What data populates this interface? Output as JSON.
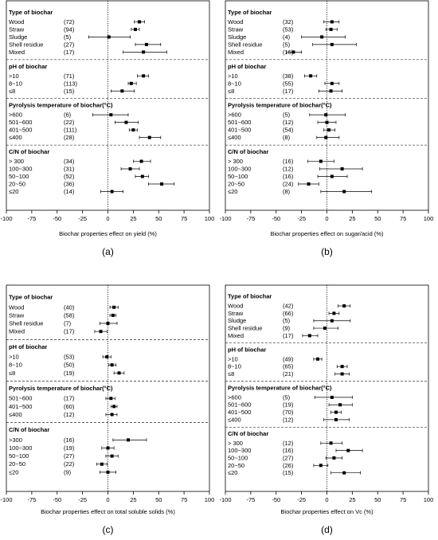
{
  "chart_data": [
    {
      "panel_label": "(a)",
      "type": "scatter",
      "xlabel": "Biochar properties effect on yield (%)",
      "xlim": [
        -100,
        100
      ],
      "xticks": [
        -100,
        -75,
        -50,
        -25,
        0,
        25,
        50,
        75,
        100
      ],
      "reference_line": 0,
      "groups": [
        {
          "title": "Type of biochar",
          "rows": [
            {
              "label": "Wood",
              "n": "(72)",
              "mean": 31,
              "ci": [
                26,
                36
              ]
            },
            {
              "label": "Straw",
              "n": "(94)",
              "mean": 27,
              "ci": [
                23,
                31
              ]
            },
            {
              "label": "Sludge",
              "n": "(5)",
              "mean": 1,
              "ci": [
                -19,
                22
              ]
            },
            {
              "label": "Shell residue",
              "n": "(27)",
              "mean": 38,
              "ci": [
                27,
                52
              ]
            },
            {
              "label": "Mixed",
              "n": "(17)",
              "mean": 35,
              "ci": [
                15,
                58
              ]
            }
          ]
        },
        {
          "title": "pH of biochar",
          "rows": [
            {
              "label": ">10",
              "n": "(71)",
              "mean": 35,
              "ci": [
                29,
                40
              ]
            },
            {
              "label": "8~10",
              "n": "(113)",
              "mean": 23,
              "ci": [
                20,
                28
              ]
            },
            {
              "label": "≤8",
              "n": "(15)",
              "mean": 14,
              "ci": [
                3,
                26
              ]
            }
          ]
        },
        {
          "title": "Pyrolysis temperature of biochar(°C)",
          "rows": [
            {
              "label": ">600",
              "n": "(6)",
              "mean": 3,
              "ci": [
                -15,
                20
              ]
            },
            {
              "label": "501~600",
              "n": "(22)",
              "mean": 18,
              "ci": [
                7,
                30
              ]
            },
            {
              "label": "401~500",
              "n": "(111)",
              "mean": 25,
              "ci": [
                21,
                29
              ]
            },
            {
              "label": "≤400",
              "n": "(28)",
              "mean": 41,
              "ci": [
                31,
                52
              ]
            }
          ]
        },
        {
          "title": "C/N of biochar",
          "rows": [
            {
              "label": "> 300",
              "n": "(34)",
              "mean": 33,
              "ci": [
                25,
                42
              ]
            },
            {
              "label": "100~300",
              "n": "(31)",
              "mean": 22,
              "ci": [
                13,
                31
              ]
            },
            {
              "label": "50~100",
              "n": "(52)",
              "mean": 34,
              "ci": [
                27,
                40
              ]
            },
            {
              "label": "20~50",
              "n": "(36)",
              "mean": 53,
              "ci": [
                40,
                65
              ]
            },
            {
              "label": "≤20",
              "n": "(14)",
              "mean": 4,
              "ci": [
                -7,
                15
              ]
            }
          ]
        }
      ]
    },
    {
      "panel_label": "(b)",
      "type": "scatter",
      "xlabel": "Biochar properties effect on sugar/acid (%)",
      "xlim": [
        -100,
        100
      ],
      "xticks": [
        -100,
        -75,
        -50,
        -25,
        0,
        25,
        50,
        75,
        100
      ],
      "reference_line": 0,
      "groups": [
        {
          "title": "Type of biochar",
          "rows": [
            {
              "label": "Wood",
              "n": "(32)",
              "mean": 5,
              "ci": [
                -3,
                12
              ]
            },
            {
              "label": "Straw",
              "n": "(53)",
              "mean": 4,
              "ci": [
                -1,
                10
              ]
            },
            {
              "label": "Sludge",
              "n": "(4)",
              "mean": -5,
              "ci": [
                -25,
                18
              ]
            },
            {
              "label": "Shell residue",
              "n": "(5)",
              "mean": 5,
              "ci": [
                -14,
                29
              ]
            },
            {
              "label": "Mixed",
              "n": "(16)",
              "mean": -33,
              "ci": [
                -40,
                -25
              ]
            }
          ]
        },
        {
          "title": "pH of biochar",
          "rows": [
            {
              "label": ">10",
              "n": "(38)",
              "mean": -16,
              "ci": [
                -22,
                -10
              ]
            },
            {
              "label": "8~10",
              "n": "(55)",
              "mean": 5,
              "ci": [
                -2,
                12
              ]
            },
            {
              "label": "≤8",
              "n": "(17)",
              "mean": 4,
              "ci": [
                -8,
                15
              ]
            }
          ]
        },
        {
          "title": "Pyrolysis temperature of biochar(°C)",
          "rows": [
            {
              "label": ">600",
              "n": "(5)",
              "mean": -1,
              "ci": [
                -17,
                18
              ]
            },
            {
              "label": "501~600",
              "n": "(12)",
              "mean": 0,
              "ci": [
                -9,
                9
              ]
            },
            {
              "label": "401~500",
              "n": "(54)",
              "mean": 2,
              "ci": [
                -3,
                8
              ]
            },
            {
              "label": "≤400",
              "n": "(8)",
              "mean": -1,
              "ci": [
                -10,
                12
              ]
            }
          ]
        },
        {
          "title": "C/N of biochar",
          "rows": [
            {
              "label": "> 300",
              "n": "(16)",
              "mean": -6,
              "ci": [
                -19,
                7
              ]
            },
            {
              "label": "100~300",
              "n": "(12)",
              "mean": 15,
              "ci": [
                -7,
                35
              ]
            },
            {
              "label": "50~100",
              "n": "(16)",
              "mean": 5,
              "ci": [
                -9,
                20
              ]
            },
            {
              "label": "20~50",
              "n": "(24)",
              "mean": -18,
              "ci": [
                -28,
                -8
              ]
            },
            {
              "label": "≤20",
              "n": "(8)",
              "mean": 17,
              "ci": [
                -6,
                44
              ]
            }
          ]
        }
      ]
    },
    {
      "panel_label": "(c)",
      "type": "scatter",
      "xlabel": "Biochar properties effect on total soluble solids (%)",
      "xlim": [
        -100,
        100
      ],
      "xticks": [
        -100,
        -75,
        -50,
        -25,
        0,
        25,
        50,
        75,
        100
      ],
      "reference_line": 0,
      "groups": [
        {
          "title": "Type of biochar",
          "rows": [
            {
              "label": "Wood",
              "n": "(40)",
              "mean": 6,
              "ci": [
                2,
                10
              ]
            },
            {
              "label": "Straw",
              "n": "(58)",
              "mean": 5,
              "ci": [
                2,
                8
              ]
            },
            {
              "label": "Shell residue",
              "n": "(7)",
              "mean": 0,
              "ci": [
                -8,
                9
              ]
            },
            {
              "label": "Mixed",
              "n": "(17)",
              "mean": -7,
              "ci": [
                -13,
                -1
              ]
            }
          ]
        },
        {
          "title": "pH of biochar",
          "rows": [
            {
              "label": ">10",
              "n": "(53)",
              "mean": -1,
              "ci": [
                -5,
                3
              ]
            },
            {
              "label": "8~10",
              "n": "(50)",
              "mean": 4,
              "ci": [
                1,
                8
              ]
            },
            {
              "label": "≤8",
              "n": "(19)",
              "mean": 11,
              "ci": [
                6,
                16
              ]
            }
          ]
        },
        {
          "title": "Pyrolysis temperature of biochar(°C)",
          "rows": [
            {
              "label": "501~600",
              "n": "(17)",
              "mean": 3,
              "ci": [
                -2,
                7
              ]
            },
            {
              "label": "401~500",
              "n": "(60)",
              "mean": 6,
              "ci": [
                3,
                9
              ]
            },
            {
              "label": "≤400",
              "n": "(12)",
              "mean": 4,
              "ci": [
                -2,
                9
              ]
            }
          ]
        },
        {
          "title": "C/N of biochar",
          "rows": [
            {
              "label": ">300",
              "n": "(16)",
              "mean": 20,
              "ci": [
                5,
                38
              ]
            },
            {
              "label": "100~300",
              "n": "(19)",
              "mean": 0,
              "ci": [
                -6,
                6
              ]
            },
            {
              "label": "50~100",
              "n": "(27)",
              "mean": 4,
              "ci": [
                -2,
                10
              ]
            },
            {
              "label": "20~50",
              "n": "(22)",
              "mean": -6,
              "ci": [
                -11,
                -1
              ]
            },
            {
              "label": "≤20",
              "n": "(9)",
              "mean": 0,
              "ci": [
                -8,
                8
              ]
            }
          ]
        }
      ]
    },
    {
      "panel_label": "(d)",
      "type": "scatter",
      "xlabel": "Biochar properties effect on Vc (%)",
      "xlim": [
        -100,
        100
      ],
      "xticks": [
        -100,
        -75,
        -50,
        -25,
        0,
        25,
        50,
        75,
        100
      ],
      "reference_line": 0,
      "groups": [
        {
          "title": "Type of biochar",
          "rows": [
            {
              "label": "Wood",
              "n": "(42)",
              "mean": 17,
              "ci": [
                11,
                23
              ]
            },
            {
              "label": "Straw",
              "n": "(66)",
              "mean": 7,
              "ci": [
                2,
                12
              ]
            },
            {
              "label": "Sludge",
              "n": "(5)",
              "mean": 5,
              "ci": [
                -13,
                23
              ]
            },
            {
              "label": "Shell residue",
              "n": "(9)",
              "mean": -2,
              "ci": [
                -13,
                11
              ]
            },
            {
              "label": "Mixed",
              "n": "(17)",
              "mean": -17,
              "ci": [
                -24,
                -9
              ]
            }
          ]
        },
        {
          "title": "pH of biochar",
          "rows": [
            {
              "label": ">10",
              "n": "(49)",
              "mean": -9,
              "ci": [
                -13,
                -5
              ]
            },
            {
              "label": "8~10",
              "n": "(65)",
              "mean": 15,
              "ci": [
                10,
                20
              ]
            },
            {
              "label": "≤8",
              "n": "(21)",
              "mean": 15,
              "ci": [
                8,
                22
              ]
            }
          ]
        },
        {
          "title": "Pyrolysis temperature of biochar(°C)",
          "rows": [
            {
              "label": ">600",
              "n": "(5)",
              "mean": 5,
              "ci": [
                -12,
                25
              ]
            },
            {
              "label": "501~600",
              "n": "(19)",
              "mean": 13,
              "ci": [
                2,
                25
              ]
            },
            {
              "label": "401~500",
              "n": "(70)",
              "mean": 9,
              "ci": [
                4,
                14
              ]
            },
            {
              "label": "≤400",
              "n": "(12)",
              "mean": 9,
              "ci": [
                -3,
                22
              ]
            }
          ]
        },
        {
          "title": "C/N of biochar",
          "rows": [
            {
              "label": "> 300",
              "n": "(12)",
              "mean": 4,
              "ci": [
                -6,
                15
              ]
            },
            {
              "label": "100~300",
              "n": "(16)",
              "mean": 21,
              "ci": [
                9,
                35
              ]
            },
            {
              "label": "50~100",
              "n": "(27)",
              "mean": 7,
              "ci": [
                -1,
                15
              ]
            },
            {
              "label": "20~50",
              "n": "(26)",
              "mean": -6,
              "ci": [
                -13,
                1
              ]
            },
            {
              "label": "≤20",
              "n": "(15)",
              "mean": 17,
              "ci": [
                4,
                33
              ]
            }
          ]
        }
      ]
    }
  ]
}
